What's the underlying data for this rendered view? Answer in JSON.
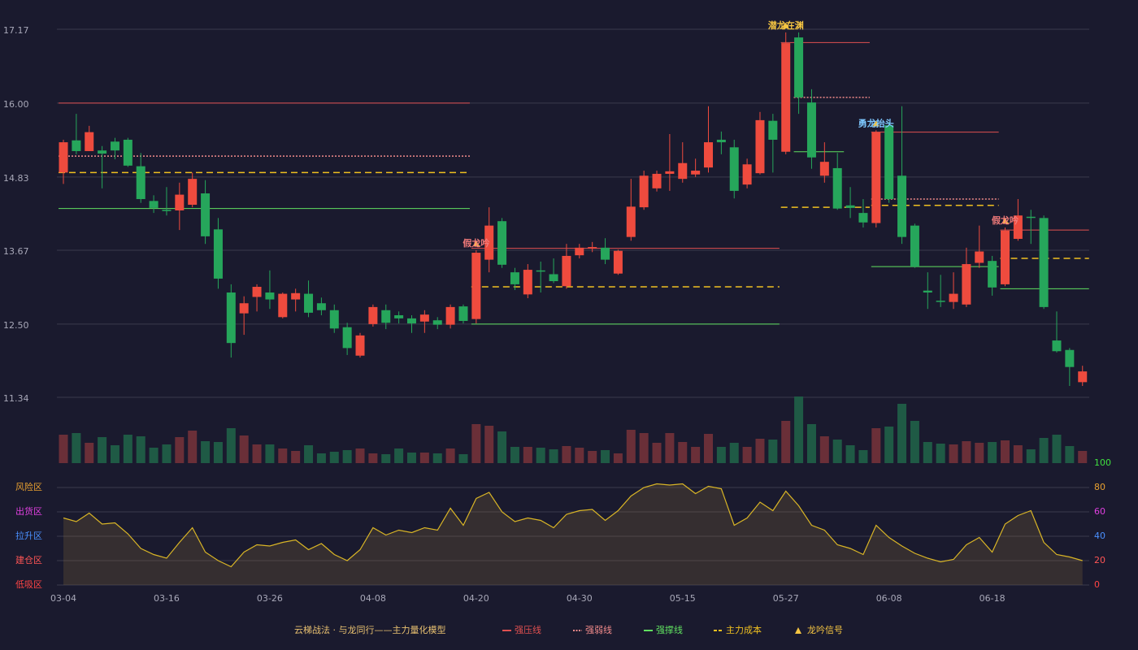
{
  "chart_data": [
    {
      "type": "candlestick",
      "up_color": "#ee4b3e",
      "down_color": "#26a65b",
      "ylim": [
        11.34,
        17.17
      ],
      "yticks": [
        17.17,
        {
          "value": 16.0,
          "label": "16.00"
        },
        14.83,
        13.67,
        {
          "value": 12.5,
          "label": "12.50"
        },
        11.34
      ],
      "grid": true,
      "open": [
        14.9,
        15.41,
        15.24,
        15.25,
        15.39,
        15.42,
        15.0,
        14.45,
        14.31,
        14.3,
        14.39,
        14.57,
        14.0,
        13.0,
        12.67,
        12.93,
        13.0,
        12.61,
        12.89,
        12.98,
        12.83,
        12.72,
        12.45,
        12.0,
        12.5,
        12.72,
        12.64,
        12.59,
        12.54,
        12.56,
        12.49,
        12.78,
        12.58,
        13.52,
        14.13,
        13.32,
        12.97,
        13.35,
        13.29,
        13.1,
        13.59,
        13.7,
        13.71,
        13.3,
        13.88,
        14.35,
        14.65,
        14.88,
        14.8,
        14.87,
        14.98,
        15.42,
        15.3,
        14.71,
        14.89,
        15.72,
        15.23,
        17.04,
        16.01,
        14.85,
        14.97,
        14.38,
        14.26,
        14.1,
        15.65,
        14.85,
        14.06,
        13.03,
        12.87,
        12.85,
        12.81,
        13.47,
        13.5,
        13.13,
        13.85,
        14.2,
        14.18,
        12.24,
        12.09,
        11.58
      ],
      "high": [
        15.42,
        15.83,
        15.64,
        15.32,
        15.45,
        15.45,
        15.21,
        14.54,
        14.67,
        14.74,
        14.9,
        14.78,
        14.18,
        13.13,
        12.94,
        13.13,
        13.35,
        13.0,
        13.06,
        13.19,
        12.92,
        12.81,
        12.52,
        12.36,
        12.81,
        12.81,
        12.7,
        12.64,
        12.72,
        12.61,
        12.81,
        12.81,
        13.67,
        14.35,
        14.18,
        13.39,
        13.45,
        13.49,
        13.54,
        13.77,
        13.77,
        13.8,
        13.86,
        13.68,
        14.8,
        14.93,
        14.93,
        15.51,
        15.38,
        15.12,
        15.95,
        15.55,
        15.42,
        15.12,
        15.86,
        15.83,
        17.12,
        17.12,
        16.22,
        15.38,
        15.21,
        14.67,
        14.48,
        15.57,
        15.7,
        15.95,
        14.09,
        13.32,
        13.28,
        13.32,
        13.71,
        14.06,
        13.58,
        14.03,
        14.48,
        14.31,
        14.22,
        12.7,
        12.12,
        11.84
      ],
      "low": [
        14.72,
        15.19,
        15.24,
        14.65,
        15.11,
        14.99,
        14.42,
        14.26,
        14.22,
        13.99,
        14.35,
        13.77,
        13.06,
        11.97,
        12.33,
        12.7,
        12.74,
        12.59,
        12.7,
        12.61,
        12.64,
        12.36,
        12.01,
        11.97,
        12.46,
        12.42,
        12.51,
        12.36,
        12.36,
        12.42,
        12.43,
        12.51,
        12.51,
        13.32,
        13.39,
        13.04,
        12.91,
        13.0,
        13.15,
        13.06,
        13.54,
        13.64,
        13.45,
        13.28,
        13.82,
        14.31,
        14.6,
        14.61,
        14.74,
        14.83,
        14.9,
        15.19,
        14.49,
        14.65,
        14.87,
        14.9,
        15.19,
        15.83,
        14.96,
        14.74,
        14.31,
        14.18,
        14.03,
        14.03,
        14.42,
        13.77,
        13.39,
        12.74,
        12.77,
        12.74,
        12.77,
        13.39,
        12.95,
        13.1,
        13.82,
        13.77,
        12.74,
        12.05,
        11.52,
        11.52
      ],
      "close": [
        15.38,
        15.24,
        15.54,
        15.2,
        15.25,
        15.01,
        14.48,
        14.34,
        14.29,
        14.55,
        14.8,
        13.89,
        13.22,
        12.2,
        12.83,
        13.09,
        12.89,
        12.98,
        12.99,
        12.68,
        12.72,
        12.43,
        12.12,
        12.32,
        12.77,
        12.52,
        12.59,
        12.51,
        12.65,
        12.49,
        12.77,
        12.55,
        13.63,
        14.06,
        13.44,
        13.13,
        13.36,
        13.34,
        13.18,
        13.58,
        13.71,
        13.72,
        13.52,
        13.66,
        14.36,
        14.85,
        14.88,
        14.92,
        15.05,
        14.93,
        15.38,
        15.38,
        14.61,
        15.03,
        15.73,
        15.42,
        16.95,
        16.09,
        15.14,
        15.07,
        14.33,
        14.34,
        14.11,
        15.54,
        14.48,
        13.88,
        13.41,
        13.0,
        12.86,
        12.98,
        13.45,
        13.65,
        13.08,
        13.98,
        14.22,
        14.19,
        12.77,
        12.07,
        11.82,
        11.75
      ],
      "signals": [
        {
          "index": 56,
          "label": "潜龙在渊",
          "color": "#f5c542"
        },
        {
          "index": 32,
          "label": "假龙吟",
          "color": "#f07a7a"
        },
        {
          "index": 63,
          "label": "勇龙抬头",
          "color": "#7ec8ff"
        },
        {
          "index": 73,
          "label": "假龙吟",
          "color": "#f07a7a"
        }
      ]
    },
    {
      "type": "bar",
      "up_color": "#6a2f38",
      "down_color": "#1f5a45",
      "ylim": [
        0,
        82
      ],
      "values": [
        35,
        37,
        25,
        32,
        22,
        35,
        33,
        19,
        23,
        32,
        40,
        27,
        26,
        43,
        34,
        23,
        23,
        18,
        15,
        22,
        12,
        14,
        16,
        18,
        12,
        11,
        18,
        13,
        13,
        12,
        18,
        11,
        48,
        46,
        39,
        20,
        20,
        19,
        17,
        21,
        19,
        15,
        16,
        12,
        41,
        37,
        25,
        37,
        26,
        20,
        36,
        20,
        25,
        20,
        30,
        29,
        52,
        82,
        48,
        33,
        29,
        22,
        16,
        43,
        45,
        73,
        52,
        26,
        24,
        23,
        27,
        25,
        26,
        28,
        22,
        17,
        31,
        35,
        21,
        15
      ]
    },
    {
      "type": "area",
      "color": "#d9b526",
      "ylim": [
        0,
        100
      ],
      "yticks": [
        {
          "value": 80,
          "label": "风险区",
          "color": "#e8a030"
        },
        {
          "value": 60,
          "label": "出货区",
          "color": "#e040e0"
        },
        {
          "value": 40,
          "label": "拉升区",
          "color": "#4a90ff"
        },
        {
          "value": 20,
          "label": "建仓区",
          "color": "#ff5555"
        },
        {
          "value": 0,
          "label": "低吸区",
          "color": "#ff4444"
        }
      ],
      "y2lim": [
        0,
        100
      ],
      "y2ticks": [
        100,
        80,
        60,
        40,
        20,
        0
      ],
      "y2tick_colors": [
        "#40e040",
        "#e8a030",
        "#e040e0",
        "#4a90ff",
        "#ff5555",
        "#ff4444"
      ],
      "categories": [
        "03-04",
        null,
        null,
        null,
        null,
        null,
        null,
        null,
        "03-16",
        null,
        null,
        null,
        null,
        null,
        null,
        null,
        "03-26",
        null,
        null,
        null,
        null,
        null,
        null,
        null,
        "04-08",
        null,
        null,
        null,
        null,
        null,
        null,
        null,
        "04-20",
        null,
        null,
        null,
        null,
        null,
        null,
        null,
        "04-30",
        null,
        null,
        null,
        null,
        null,
        null,
        null,
        "05-15",
        null,
        null,
        null,
        null,
        null,
        null,
        null,
        "05-27",
        null,
        null,
        null,
        null,
        null,
        null,
        null,
        "06-08",
        null,
        null,
        null,
        null,
        null,
        null,
        null,
        "06-18",
        null,
        null,
        null,
        null,
        null,
        null,
        null
      ],
      "values": [
        55,
        52,
        59,
        50,
        51,
        42,
        30,
        25,
        22,
        35,
        47,
        27,
        20,
        15,
        27,
        33,
        32,
        35,
        37,
        29,
        34,
        25,
        20,
        29,
        47,
        41,
        45,
        43,
        47,
        45,
        63,
        49,
        71,
        76,
        60,
        52,
        55,
        53,
        47,
        58,
        61,
        62,
        53,
        61,
        73,
        80,
        83,
        82,
        83,
        75,
        81,
        79,
        49,
        55,
        68,
        61,
        77,
        65,
        49,
        45,
        33,
        30,
        25,
        49,
        39,
        32,
        26,
        22,
        19,
        21,
        33,
        39,
        27,
        50,
        57,
        61,
        35,
        25,
        23,
        20
      ]
    }
  ],
  "legend": {
    "title": "云梯战法 · 与龙同行——主力量化模型",
    "title_color": "#e8c070",
    "items": [
      {
        "name": "强压线",
        "color": "#e05050",
        "style": "solid",
        "segments": [
          {
            "start": 0,
            "end": 31,
            "value": 16.0
          },
          {
            "start": 32,
            "end": 55,
            "value": 13.7
          },
          {
            "start": 56,
            "end": 62,
            "value": 16.96
          },
          {
            "start": 63,
            "end": 72,
            "value": 15.54
          },
          {
            "start": 73,
            "end": 79,
            "value": 13.99
          }
        ]
      },
      {
        "name": "强弱线",
        "color": "#f08a8a",
        "style": "dotted",
        "segments": [
          {
            "start": 0,
            "end": 31,
            "value": 15.16
          },
          {
            "start": 57,
            "end": 62,
            "value": 16.09
          },
          {
            "start": 63,
            "end": 72,
            "value": 14.48
          }
        ]
      },
      {
        "name": "强撑线",
        "color": "#60e060",
        "style": "solid",
        "segments": [
          {
            "start": 0,
            "end": 31,
            "value": 14.33
          },
          {
            "start": 32,
            "end": 55,
            "value": 12.5
          },
          {
            "start": 57,
            "end": 60,
            "value": 15.23
          },
          {
            "start": 63,
            "end": 72,
            "value": 13.41
          },
          {
            "start": 73,
            "end": 79,
            "value": 13.06
          }
        ]
      },
      {
        "name": "主力成本",
        "color": "#f0c020",
        "style": "dashed",
        "segments": [
          {
            "start": 0,
            "end": 31,
            "value": 14.9
          },
          {
            "start": 32,
            "end": 55,
            "value": 13.09
          },
          {
            "start": 56,
            "end": 62,
            "value": 14.35
          },
          {
            "start": 63,
            "end": 72,
            "value": 14.38
          },
          {
            "start": 73,
            "end": 79,
            "value": 13.54
          }
        ]
      },
      {
        "name": "龙吟信号",
        "color": "#f5c542",
        "style": "triangle"
      }
    ]
  }
}
